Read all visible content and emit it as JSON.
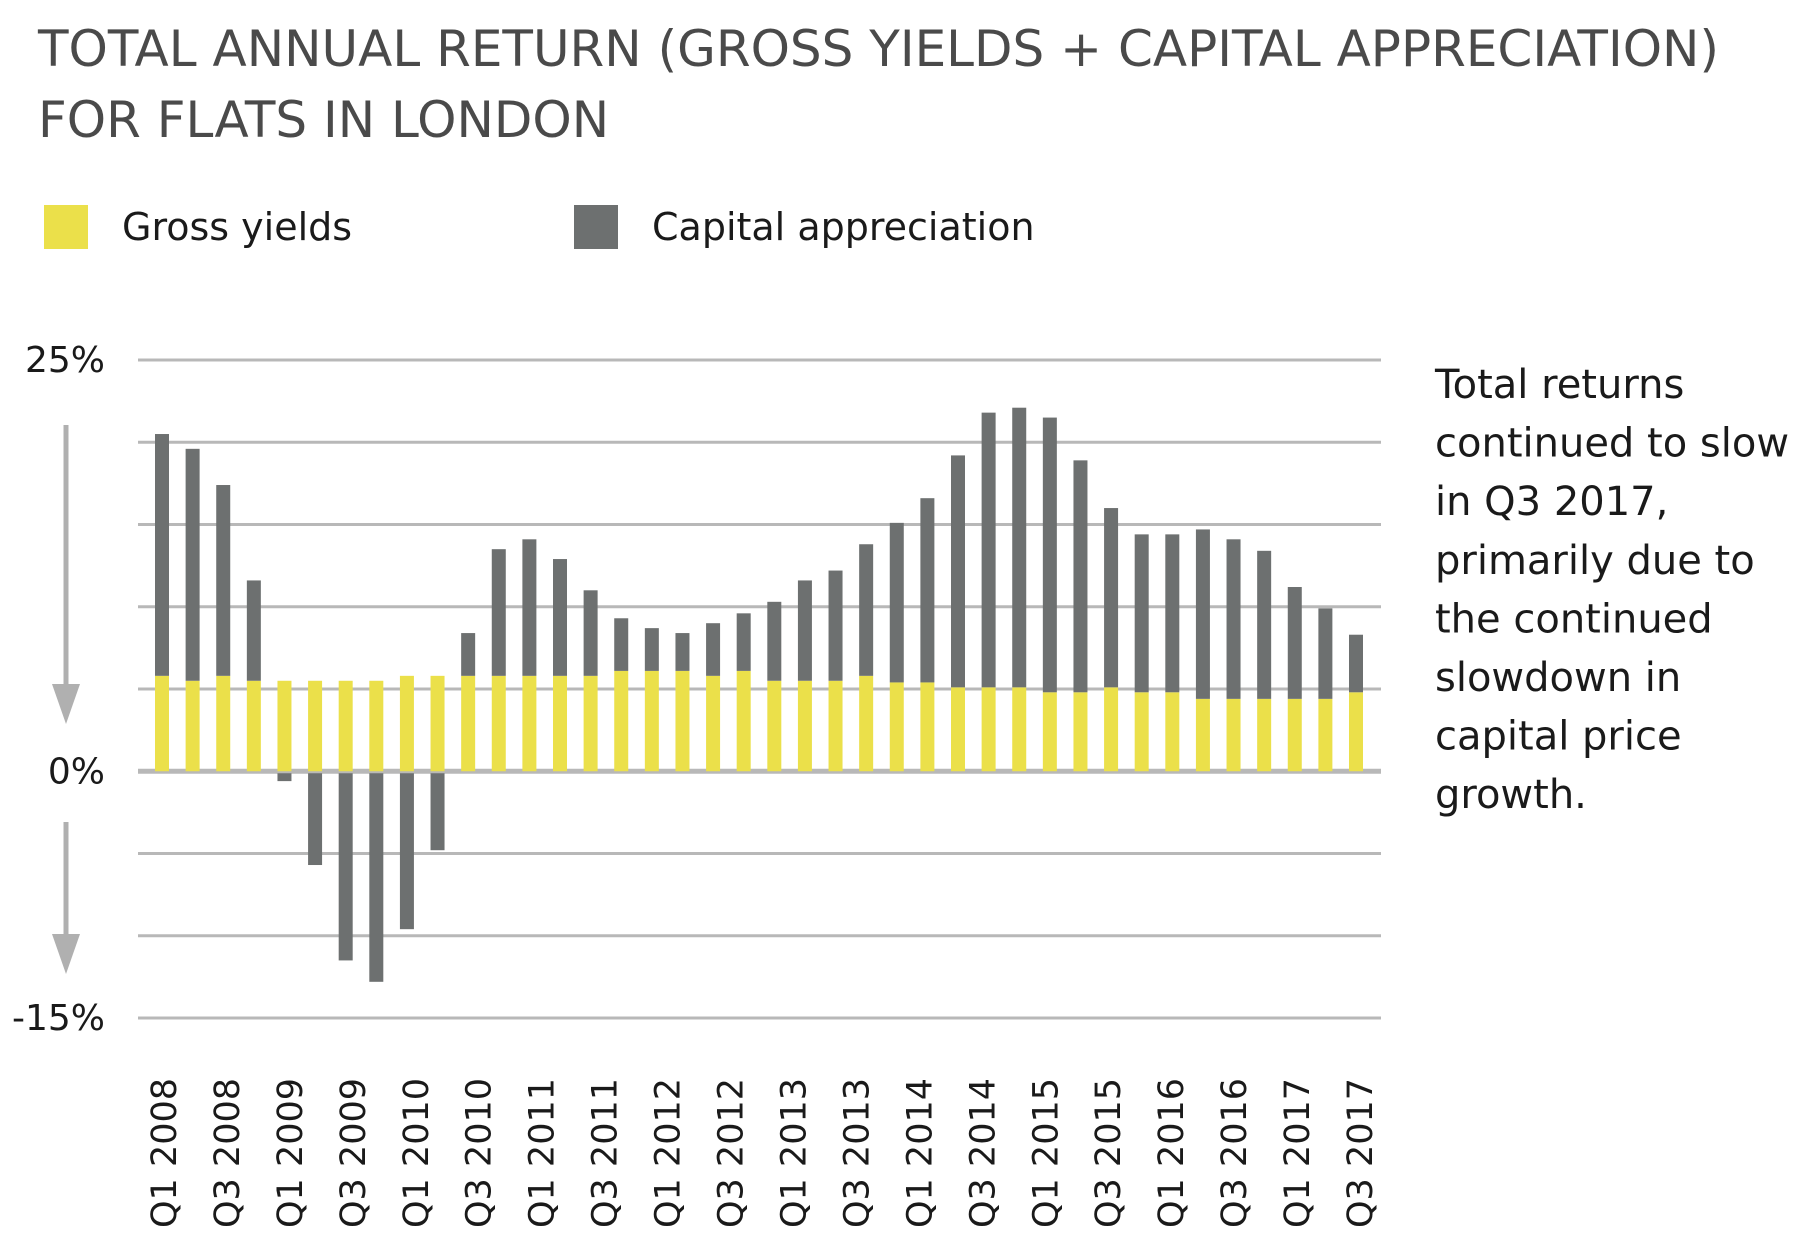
{
  "chart_data": {
    "type": "bar",
    "stacked": true,
    "title": "TOTAL ANNUAL RETURN (GROSS YIELDS + CAPITAL APPRECIATION) FOR FLATS IN LONDON",
    "title_lines": [
      "TOTAL ANNUAL RETURN (GROSS YIELDS + CAPITAL APPRECIATION)",
      "FOR FLATS IN LONDON"
    ],
    "x_tick_labels": [
      "Q1 2008",
      "Q3 2008",
      "Q1 2009",
      "Q3 2009",
      "Q1 2010",
      "Q3 2010",
      "Q1 2011",
      "Q3 2011",
      "Q1 2012",
      "Q3 2012",
      "Q1 2013",
      "Q3 2013",
      "Q1 2014",
      "Q3 2014",
      "Q1 2015",
      "Q3 2015",
      "Q1 2016",
      "Q3 2016",
      "Q1 2017",
      "Q3 2017"
    ],
    "y_tick_labels": [
      {
        "value": 25,
        "label": "25%"
      },
      {
        "value": 0,
        "label": "0%"
      },
      {
        "value": -15,
        "label": "-15%"
      }
    ],
    "ylim": [
      -15,
      25
    ],
    "grid_step": 5,
    "grid": true,
    "legend_placement": "top-left",
    "series": [
      {
        "name": "Gross yields",
        "color": "#ebe04a",
        "values": [
          5.8,
          5.5,
          5.8,
          5.5,
          5.5,
          5.5,
          5.5,
          5.5,
          5.8,
          5.8,
          5.8,
          5.8,
          5.8,
          5.8,
          5.8,
          6.1,
          6.1,
          6.1,
          5.8,
          6.1,
          5.5,
          5.5,
          5.5,
          5.8,
          5.4,
          5.4,
          5.1,
          5.1,
          5.1,
          4.8,
          4.8,
          5.1,
          4.8,
          4.8,
          4.4,
          4.4,
          4.4,
          4.4,
          4.4,
          4.8
        ]
      },
      {
        "name": "Capital appreciation",
        "color": "#6d7070",
        "values": [
          14.7,
          14.1,
          11.6,
          6.1,
          -0.6,
          -5.7,
          -11.5,
          -12.8,
          -9.6,
          -4.8,
          2.6,
          7.7,
          8.3,
          7.1,
          5.2,
          3.2,
          2.6,
          2.3,
          3.2,
          3.5,
          4.8,
          6.1,
          6.7,
          8.0,
          9.7,
          11.2,
          14.1,
          16.7,
          17.0,
          16.7,
          14.1,
          10.9,
          9.6,
          9.6,
          10.3,
          9.7,
          9.0,
          6.8,
          5.5,
          3.5
        ]
      }
    ],
    "annotation_lines": [
      "Total returns",
      "continued to slow",
      "in Q3 2017,",
      "primarily due to",
      "the continued",
      "slowdown in",
      "capital price",
      "growth."
    ]
  }
}
